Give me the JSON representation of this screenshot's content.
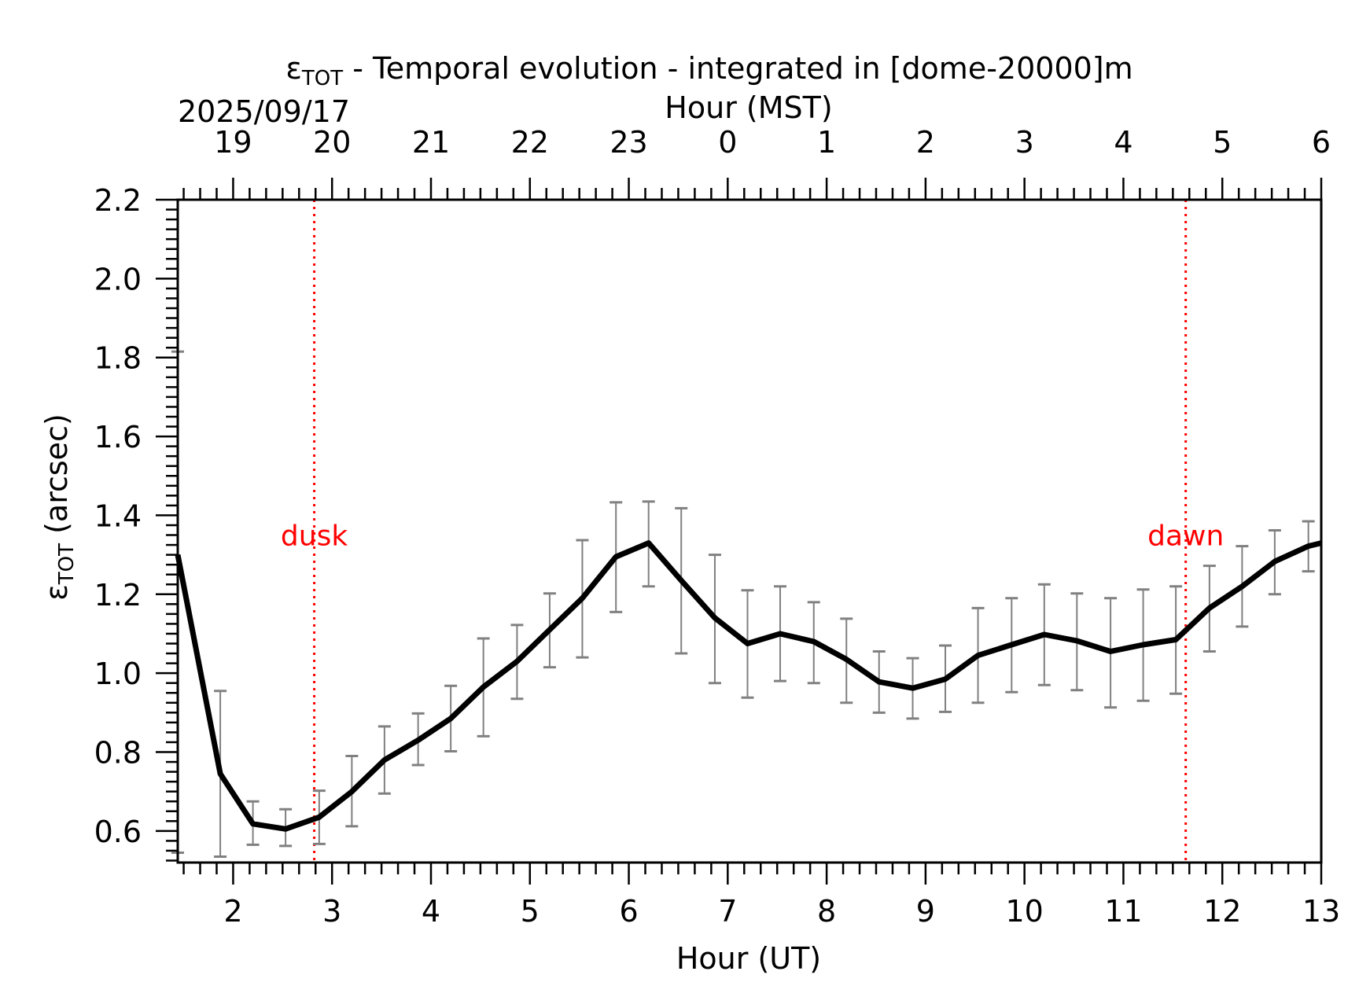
{
  "chart_data": {
    "type": "line",
    "title": {
      "symbol": "ε",
      "subscript": "TOT",
      "rest": " - Temporal evolution - integrated in [dome-20000]m"
    },
    "date": "2025/09/17",
    "xlabel": "Hour (UT)",
    "x2label": "Hour (MST)",
    "ylabel": {
      "symbol": "ε",
      "subscript": "TOT",
      "rest": " (arcsec)"
    },
    "xlim": [
      1.44,
      13.0
    ],
    "ylim": [
      0.52,
      2.2
    ],
    "xticks": [
      2,
      3,
      4,
      5,
      6,
      7,
      8,
      9,
      10,
      11,
      12,
      13
    ],
    "yticks": [
      0.6,
      0.8,
      1.0,
      1.2,
      1.4,
      1.6,
      1.8,
      2.0,
      2.2
    ],
    "ytick_labels": [
      "0.6",
      "0.8",
      "1.0",
      "1.2",
      "1.4",
      "1.6",
      "1.8",
      "2.0",
      "2.2"
    ],
    "top_ticks": [
      {
        "x": 2,
        "label": "19"
      },
      {
        "x": 3,
        "label": "20"
      },
      {
        "x": 4,
        "label": "21"
      },
      {
        "x": 5,
        "label": "22"
      },
      {
        "x": 6,
        "label": "23"
      },
      {
        "x": 7,
        "label": "0"
      },
      {
        "x": 8,
        "label": "1"
      },
      {
        "x": 9,
        "label": "2"
      },
      {
        "x": 10,
        "label": "3"
      },
      {
        "x": 11,
        "label": "4"
      },
      {
        "x": 12,
        "label": "5"
      },
      {
        "x": 13,
        "label": "6"
      }
    ],
    "series": [
      {
        "color": "#000000",
        "errorbar_color": "#808080",
        "x": [
          1.44,
          1.87,
          2.2,
          2.53,
          2.87,
          3.2,
          3.53,
          3.87,
          4.2,
          4.53,
          4.87,
          5.2,
          5.53,
          5.87,
          6.2,
          6.53,
          6.87,
          7.2,
          7.53,
          7.87,
          8.2,
          8.53,
          8.87,
          9.2,
          9.53,
          9.87,
          10.2,
          10.53,
          10.87,
          11.2,
          11.53,
          11.87,
          12.2,
          12.53,
          12.87,
          13.0
        ],
        "y": [
          1.3,
          0.745,
          0.618,
          0.605,
          0.635,
          0.7,
          0.78,
          0.83,
          0.885,
          0.965,
          1.03,
          1.11,
          1.19,
          1.295,
          1.33,
          1.235,
          1.14,
          1.075,
          1.1,
          1.08,
          1.035,
          0.978,
          0.962,
          0.985,
          1.045,
          1.072,
          1.098,
          1.082,
          1.055,
          1.072,
          1.085,
          1.165,
          1.22,
          1.283,
          1.322,
          1.33
        ],
        "err_low": [
          0.545,
          0.535,
          0.565,
          0.562,
          0.567,
          0.612,
          0.695,
          0.767,
          0.802,
          0.84,
          0.935,
          1.015,
          1.04,
          1.155,
          1.22,
          1.05,
          0.975,
          0.938,
          0.98,
          0.975,
          0.925,
          0.9,
          0.885,
          0.902,
          0.925,
          0.952,
          0.97,
          0.957,
          0.913,
          0.93,
          0.948,
          1.055,
          1.118,
          1.2,
          1.258,
          null
        ],
        "err_high": [
          1.815,
          0.955,
          0.675,
          0.655,
          0.702,
          0.79,
          0.865,
          0.898,
          0.968,
          1.088,
          1.122,
          1.202,
          1.337,
          1.433,
          1.435,
          1.418,
          1.3,
          1.21,
          1.22,
          1.18,
          1.138,
          1.055,
          1.038,
          1.07,
          1.165,
          1.19,
          1.225,
          1.202,
          1.19,
          1.212,
          1.22,
          1.272,
          1.322,
          1.362,
          1.385,
          null
        ]
      }
    ],
    "events": [
      {
        "label": "dusk",
        "x": 2.82,
        "color": "#ff0000"
      },
      {
        "label": "dawn",
        "x": 11.63,
        "color": "#ff0000"
      }
    ],
    "grid": false,
    "legend": "none"
  }
}
